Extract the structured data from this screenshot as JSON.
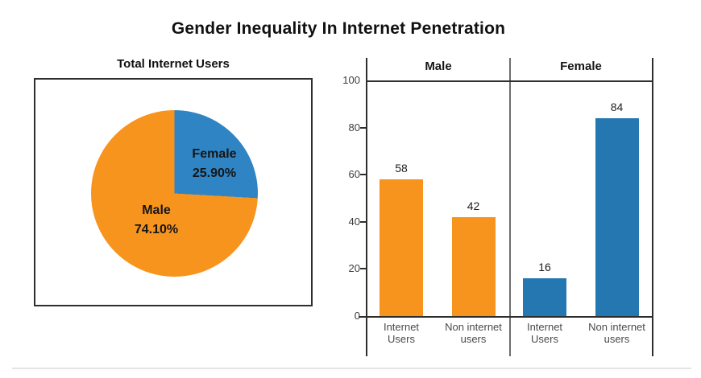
{
  "title": "Gender Inequality In Internet Penetration",
  "colors": {
    "orange": "#f7941e",
    "blue_bar": "#2577b2",
    "blue_pie": "#2f84c4",
    "axis": "#2e2e2e",
    "separator": "#6e6e6e"
  },
  "chart_data": [
    {
      "type": "pie",
      "title": "Total Internet Users",
      "start": "top",
      "direction": "clockwise",
      "slices": [
        {
          "label": "Female",
          "pct_label": "25.90%",
          "value": 25.9,
          "color": "#2f84c4"
        },
        {
          "label": "Male",
          "pct_label": "74.10%",
          "value": 74.1,
          "color": "#f7941e"
        }
      ]
    },
    {
      "type": "bar",
      "ylim": [
        0,
        100
      ],
      "y_ticks": [
        0,
        20,
        40,
        60,
        80,
        100
      ],
      "grid": "off",
      "categories": [
        "Internet Users",
        "Non internet users"
      ],
      "groups": [
        {
          "label": "Male",
          "color": "#f7941e",
          "bars": [
            {
              "label_lines": [
                "Internet",
                "Users"
              ],
              "value": 58
            },
            {
              "label_lines": [
                "Non internet",
                "users"
              ],
              "value": 42
            }
          ]
        },
        {
          "label": "Female",
          "color": "#2577b2",
          "bars": [
            {
              "label_lines": [
                "Internet",
                "Users"
              ],
              "value": 16
            },
            {
              "label_lines": [
                "Non internet",
                "users"
              ],
              "value": 84
            }
          ]
        }
      ]
    }
  ]
}
